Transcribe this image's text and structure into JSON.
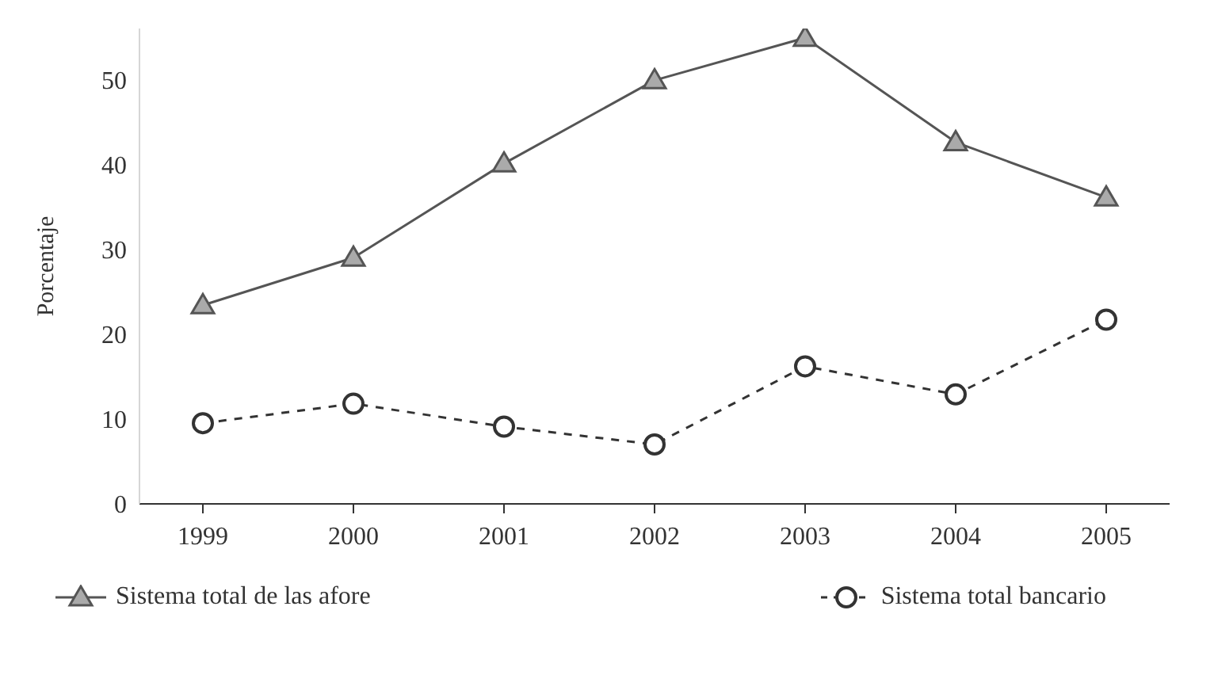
{
  "chart_data": {
    "type": "line",
    "ylabel": "Porcentaje",
    "categories": [
      "1999",
      "2000",
      "2001",
      "2002",
      "2003",
      "2004",
      "2005"
    ],
    "series": [
      {
        "name": "Sistema total de las afore",
        "color": "#555555",
        "marker": "triangle",
        "line_style": "solid",
        "values": [
          23.4,
          29,
          40.1,
          49.9,
          54.9,
          42.6,
          36.1
        ]
      },
      {
        "name": "Sistema total bancario",
        "color": "#333333",
        "marker": "circle",
        "line_style": "dashed",
        "values": [
          9.5,
          11.8,
          9.1,
          7,
          16.2,
          12.9,
          21.7
        ]
      }
    ],
    "ylim": [
      0,
      56
    ],
    "yticks": [
      0,
      10,
      20,
      30,
      40,
      50
    ],
    "grid": false,
    "legend": "bottom"
  }
}
